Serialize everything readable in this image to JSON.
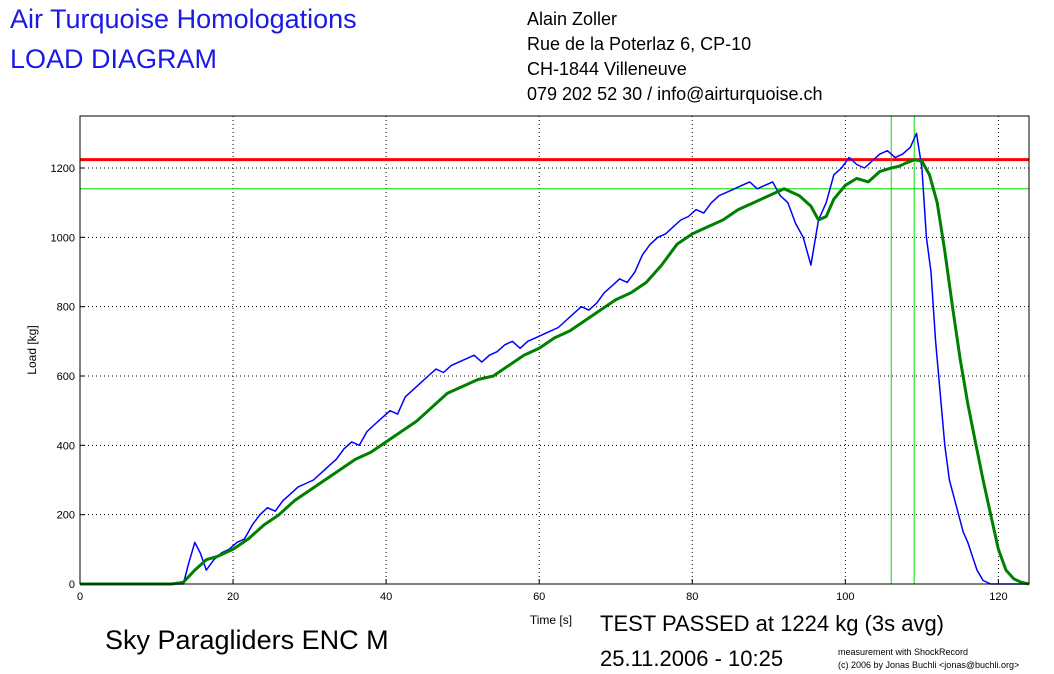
{
  "header": {
    "title_line1": "Air Turquoise Homologations",
    "title_line2": "LOAD DIAGRAM",
    "address": [
      "Alain Zoller",
      "Rue de la Poterlaz 6, CP-10",
      "CH-1844 Villeneuve",
      "079 202 52 30 / info@airturquoise.ch"
    ]
  },
  "footer": {
    "product": "Sky Paragliders ENC M",
    "result": "TEST PASSED at 1224 kg (3s avg)",
    "datetime": "25.11.2006 - 10:25",
    "credit_line1": "measurement with ShockRecord",
    "credit_line2": "(c) 2006 by Jonas Buchli <jonas@buchli.org>"
  },
  "colors": {
    "raw_series": "#0000ff",
    "avg_series": "#008000",
    "limit_line": "#ff0000",
    "marker_lines": "#00e000",
    "title": "#1a1ae6"
  },
  "chart_data": {
    "type": "line",
    "xlabel": "Time [s]",
    "ylabel": "Load [kg]",
    "xlim": [
      0,
      124
    ],
    "ylim": [
      0,
      1350
    ],
    "xticks": [
      0,
      20,
      40,
      60,
      80,
      100,
      120
    ],
    "yticks": [
      0,
      200,
      400,
      600,
      800,
      1000,
      1200
    ],
    "grid": true,
    "reference_lines": [
      {
        "orientation": "horizontal",
        "y": 1224,
        "color": "#ff0000"
      },
      {
        "orientation": "horizontal",
        "y": 1140,
        "color": "#00e000"
      },
      {
        "orientation": "vertical",
        "x": 106,
        "color": "#00e000"
      },
      {
        "orientation": "vertical",
        "x": 109,
        "color": "#00e000"
      }
    ],
    "series": [
      {
        "color": "#0000ff",
        "x": [
          0,
          2,
          4,
          6,
          8,
          10,
          12,
          13.5,
          14.2,
          15,
          15.7,
          16.5,
          17.5,
          18.5,
          19.5,
          20.5,
          21.5,
          22.5,
          23.5,
          24.5,
          25.5,
          26.5,
          27.5,
          28.5,
          29.5,
          30.5,
          31.5,
          32.5,
          33.5,
          34.5,
          35.5,
          36.5,
          37.5,
          38.5,
          39.5,
          40.5,
          41.5,
          42.5,
          43.5,
          44.5,
          45.5,
          46.5,
          47.5,
          48.5,
          49.5,
          50.5,
          51.5,
          52.5,
          53.5,
          54.5,
          55.5,
          56.5,
          57.5,
          58.5,
          59.5,
          60.5,
          61.5,
          62.5,
          63.5,
          64.5,
          65.5,
          66.5,
          67.5,
          68.5,
          69.5,
          70.5,
          71.5,
          72.5,
          73.5,
          74.5,
          75.5,
          76.5,
          77.5,
          78.5,
          79.5,
          80.5,
          81.5,
          82.5,
          83.5,
          84.5,
          85.5,
          86.5,
          87.5,
          88.5,
          89.5,
          90.5,
          91.5,
          92.5,
          93.5,
          94.5,
          95.5,
          96.5,
          97.5,
          98.5,
          99.5,
          100.5,
          101.5,
          102.5,
          103.5,
          104.5,
          105.5,
          106.5,
          107.5,
          108.5,
          109.3,
          110,
          110.6,
          111.2,
          111.8,
          112.4,
          113,
          113.6,
          114.2,
          114.8,
          115.4,
          116,
          116.6,
          117.2,
          118,
          119,
          120,
          121,
          122,
          123,
          124
        ],
        "y": [
          0,
          0,
          0,
          0,
          0,
          0,
          0,
          0,
          60,
          120,
          90,
          40,
          70,
          90,
          100,
          120,
          130,
          170,
          200,
          220,
          210,
          240,
          260,
          280,
          290,
          300,
          320,
          340,
          360,
          390,
          410,
          400,
          440,
          460,
          480,
          500,
          490,
          540,
          560,
          580,
          600,
          620,
          610,
          630,
          640,
          650,
          660,
          640,
          660,
          670,
          690,
          700,
          680,
          700,
          710,
          720,
          730,
          740,
          760,
          780,
          800,
          790,
          810,
          840,
          860,
          880,
          870,
          900,
          950,
          980,
          1000,
          1010,
          1030,
          1050,
          1060,
          1080,
          1070,
          1100,
          1120,
          1130,
          1140,
          1150,
          1160,
          1140,
          1150,
          1160,
          1120,
          1100,
          1040,
          1000,
          920,
          1050,
          1100,
          1180,
          1200,
          1230,
          1210,
          1200,
          1220,
          1240,
          1250,
          1230,
          1240,
          1260,
          1300,
          1200,
          1000,
          900,
          700,
          550,
          400,
          300,
          250,
          200,
          150,
          120,
          80,
          40,
          10,
          0,
          0,
          0,
          0,
          0,
          0
        ]
      },
      {
        "color": "#008000",
        "x": [
          0,
          2,
          4,
          6,
          8,
          10,
          12,
          13.5,
          15,
          16.5,
          18,
          20,
          22,
          24,
          26,
          28,
          30,
          32,
          34,
          36,
          38,
          40,
          42,
          44,
          46,
          48,
          50,
          52,
          54,
          56,
          58,
          60,
          62,
          64,
          66,
          68,
          70,
          72,
          74,
          76,
          78,
          80,
          82,
          84,
          86,
          88,
          90,
          92,
          94,
          95.5,
          96.5,
          97.5,
          98.5,
          100,
          101.5,
          103,
          104.5,
          106,
          107,
          108,
          109,
          110,
          111,
          112,
          113,
          114,
          115,
          116,
          117,
          118,
          119,
          120,
          121,
          122,
          123,
          124
        ],
        "y": [
          0,
          0,
          0,
          0,
          0,
          0,
          0,
          5,
          40,
          70,
          80,
          100,
          130,
          170,
          200,
          240,
          270,
          300,
          330,
          360,
          380,
          410,
          440,
          470,
          510,
          550,
          570,
          590,
          600,
          630,
          660,
          680,
          710,
          730,
          760,
          790,
          820,
          840,
          870,
          920,
          980,
          1010,
          1030,
          1050,
          1080,
          1100,
          1120,
          1140,
          1120,
          1090,
          1050,
          1060,
          1110,
          1150,
          1170,
          1160,
          1190,
          1200,
          1205,
          1215,
          1224,
          1220,
          1180,
          1100,
          960,
          800,
          650,
          520,
          410,
          300,
          200,
          100,
          40,
          15,
          5,
          0
        ]
      }
    ]
  }
}
